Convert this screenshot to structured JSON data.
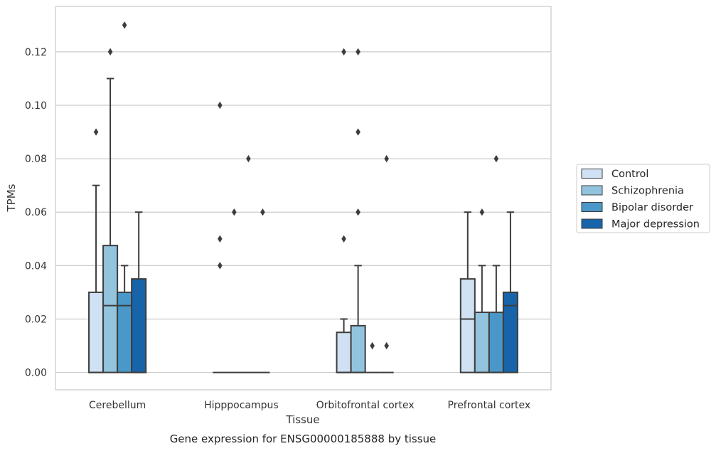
{
  "caption": "Gene expression for ENSG00000185888 by tissue",
  "chart_data": {
    "type": "box",
    "xlabel": "Tissue",
    "ylabel": "TPMs",
    "ylim": [
      -0.0065,
      0.137
    ],
    "yticks": [
      0.0,
      0.02,
      0.04,
      0.06,
      0.08,
      0.1,
      0.12
    ],
    "ytick_labels": [
      "0.00",
      "0.02",
      "0.04",
      "0.06",
      "0.08",
      "0.10",
      "0.12"
    ],
    "grid": "horizontal",
    "legend_position": "right",
    "categories": [
      "Cerebellum",
      "Hipppocampus",
      "Orbitofrontal cortex",
      "Prefrontal cortex"
    ],
    "series": [
      {
        "name": "Control",
        "color": "#cfe1f2",
        "boxes": [
          {
            "q1": 0.0,
            "median": 0.0,
            "q3": 0.03,
            "whisker_low": 0.0,
            "whisker_high": 0.07,
            "outliers": [
              0.09
            ]
          },
          {
            "q1": 0.0,
            "median": 0.0,
            "q3": 0.0,
            "whisker_low": 0.0,
            "whisker_high": 0.0,
            "outliers": [
              0.04,
              0.05,
              0.1
            ]
          },
          {
            "q1": 0.0,
            "median": 0.0,
            "q3": 0.015,
            "whisker_low": 0.0,
            "whisker_high": 0.02,
            "outliers": [
              0.05,
              0.12
            ]
          },
          {
            "q1": 0.0,
            "median": 0.02,
            "q3": 0.035,
            "whisker_low": 0.0,
            "whisker_high": 0.06,
            "outliers": []
          }
        ]
      },
      {
        "name": "Schizophrenia",
        "color": "#93c4de",
        "boxes": [
          {
            "q1": 0.0,
            "median": 0.025,
            "q3": 0.0475,
            "whisker_low": 0.0,
            "whisker_high": 0.11,
            "outliers": [
              0.12
            ]
          },
          {
            "q1": 0.0,
            "median": 0.0,
            "q3": 0.0,
            "whisker_low": 0.0,
            "whisker_high": 0.0,
            "outliers": [
              0.06
            ]
          },
          {
            "q1": 0.0,
            "median": 0.0,
            "q3": 0.0175,
            "whisker_low": 0.0,
            "whisker_high": 0.04,
            "outliers": [
              0.06,
              0.09,
              0.12
            ]
          },
          {
            "q1": 0.0,
            "median": 0.0,
            "q3": 0.0225,
            "whisker_low": 0.0,
            "whisker_high": 0.04,
            "outliers": [
              0.06
            ]
          }
        ]
      },
      {
        "name": "Bipolar disorder",
        "color": "#4a98c9",
        "boxes": [
          {
            "q1": 0.0,
            "median": 0.025,
            "q3": 0.03,
            "whisker_low": 0.0,
            "whisker_high": 0.04,
            "outliers": [
              0.13
            ]
          },
          {
            "q1": 0.0,
            "median": 0.0,
            "q3": 0.0,
            "whisker_low": 0.0,
            "whisker_high": 0.0,
            "outliers": [
              0.08
            ]
          },
          {
            "q1": 0.0,
            "median": 0.0,
            "q3": 0.0,
            "whisker_low": 0.0,
            "whisker_high": 0.0,
            "outliers": [
              0.01
            ]
          },
          {
            "q1": 0.0,
            "median": 0.0,
            "q3": 0.0225,
            "whisker_low": 0.0,
            "whisker_high": 0.04,
            "outliers": [
              0.08
            ]
          }
        ]
      },
      {
        "name": "Major depression",
        "color": "#1764ab",
        "boxes": [
          {
            "q1": 0.0,
            "median": 0.0,
            "q3": 0.035,
            "whisker_low": 0.0,
            "whisker_high": 0.06,
            "outliers": []
          },
          {
            "q1": 0.0,
            "median": 0.0,
            "q3": 0.0,
            "whisker_low": 0.0,
            "whisker_high": 0.0,
            "outliers": [
              0.06
            ]
          },
          {
            "q1": 0.0,
            "median": 0.0,
            "q3": 0.0,
            "whisker_low": 0.0,
            "whisker_high": 0.0,
            "outliers": [
              0.01,
              0.08
            ]
          },
          {
            "q1": 0.0,
            "median": 0.025,
            "q3": 0.03,
            "whisker_low": 0.0,
            "whisker_high": 0.06,
            "outliers": []
          }
        ]
      }
    ]
  }
}
